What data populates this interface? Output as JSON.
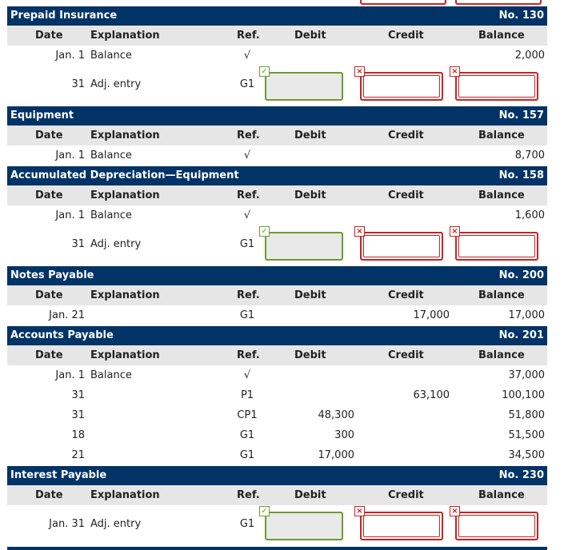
{
  "columns": {
    "date": "Date",
    "explanation": "Explanation",
    "ref": "Ref.",
    "debit": "Debit",
    "credit": "Credit",
    "balance": "Balance"
  },
  "icons": {
    "check": "✓",
    "error": "×"
  },
  "accounts": [
    {
      "name": "Prepaid Insurance",
      "number": "No. 130",
      "rows": [
        {
          "date": "Jan. 1",
          "explanation": "Balance",
          "ref": "√",
          "debit": "",
          "credit": "",
          "balance": "2,000"
        },
        {
          "date": "31",
          "explanation": "Adj. entry",
          "ref": "G1",
          "inputs": true
        }
      ]
    },
    {
      "name": "Equipment",
      "number": "No. 157",
      "rows": [
        {
          "date": "Jan. 1",
          "explanation": "Balance",
          "ref": "√",
          "debit": "",
          "credit": "",
          "balance": "8,700"
        }
      ]
    },
    {
      "name": "Accumulated Depreciation—Equipment",
      "number": "No. 158",
      "rows": [
        {
          "date": "Jan. 1",
          "explanation": "Balance",
          "ref": "√",
          "debit": "",
          "credit": "",
          "balance": "1,600"
        },
        {
          "date": "31",
          "explanation": "Adj. entry",
          "ref": "G1",
          "inputs": true
        }
      ]
    },
    {
      "name": "Notes Payable",
      "number": "No. 200",
      "rows": [
        {
          "date": "Jan. 21",
          "explanation": "",
          "ref": "G1",
          "debit": "",
          "credit": "17,000",
          "balance": "17,000"
        }
      ]
    },
    {
      "name": "Accounts Payable",
      "number": "No. 201",
      "rows": [
        {
          "date": "Jan. 1",
          "explanation": "Balance",
          "ref": "√",
          "debit": "",
          "credit": "",
          "balance": "37,000"
        },
        {
          "date": "31",
          "explanation": "",
          "ref": "P1",
          "debit": "",
          "credit": "63,100",
          "balance": "100,100"
        },
        {
          "date": "31",
          "explanation": "",
          "ref": "CP1",
          "debit": "48,300",
          "credit": "",
          "balance": "51,800"
        },
        {
          "date": "18",
          "explanation": "",
          "ref": "G1",
          "debit": "300",
          "credit": "",
          "balance": "51,500"
        },
        {
          "date": "21",
          "explanation": "",
          "ref": "G1",
          "debit": "17,000",
          "credit": "",
          "balance": "34,500"
        }
      ]
    },
    {
      "name": "Interest Payable",
      "number": "No. 230",
      "rows": [
        {
          "date": "Jan. 31",
          "explanation": "Adj. entry",
          "ref": "G1",
          "inputs": true
        }
      ]
    }
  ]
}
